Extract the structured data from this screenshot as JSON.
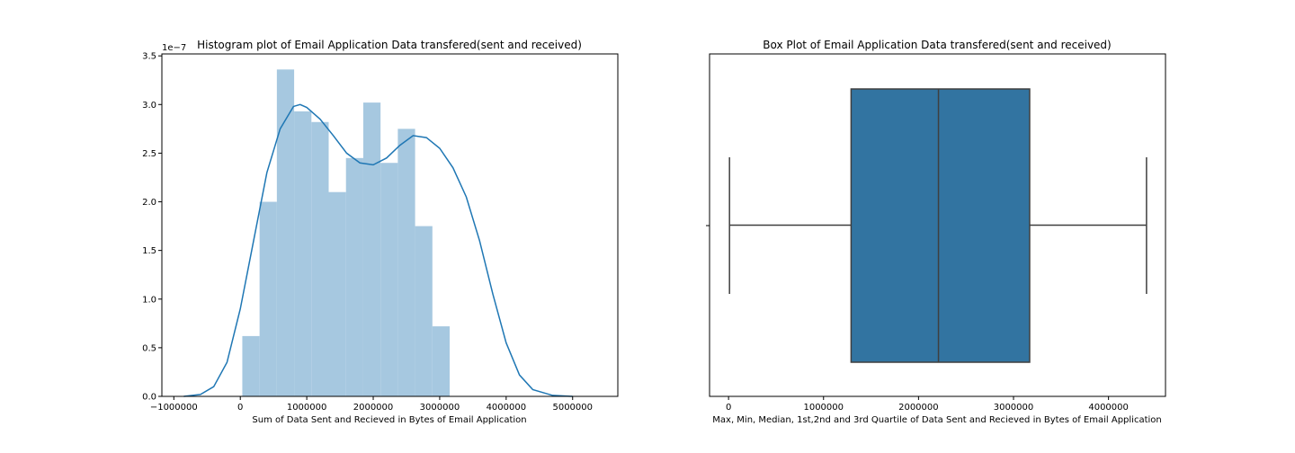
{
  "chart_data": [
    {
      "type": "bar",
      "title": "Histogram plot of Email Application Data transfered(sent and received)",
      "xlabel": "Sum of Data Sent and Recieved in Bytes of Email Application",
      "ylabel": "",
      "y_offset_text": "1e−7",
      "xlim": [
        -1180000,
        5680000
      ],
      "ylim": [
        0,
        3.52e-07
      ],
      "x_ticks": [
        -1000000,
        0,
        1000000,
        2000000,
        3000000,
        4000000,
        5000000
      ],
      "x_tick_labels": [
        "−1000000",
        "0",
        "1000000",
        "2000000",
        "3000000",
        "4000000",
        "5000000"
      ],
      "y_ticks": [
        0,
        5e-08,
        1e-07,
        1.5e-07,
        2e-07,
        2.5e-07,
        3e-07,
        3.5e-07
      ],
      "y_tick_labels": [
        "0.0",
        "0.5",
        "1.0",
        "1.5",
        "2.0",
        "2.5",
        "3.0",
        "3.5"
      ],
      "bar_color": "#a6c8e0",
      "kde_color": "#1f77b4",
      "bins": [
        {
          "x0": 30000,
          "x1": 290000,
          "value": 6.2e-08
        },
        {
          "x0": 290000,
          "x1": 550000,
          "value": 2e-07
        },
        {
          "x0": 550000,
          "x1": 810000,
          "value": 3.36e-07
        },
        {
          "x0": 810000,
          "x1": 1070000,
          "value": 2.93e-07
        },
        {
          "x0": 1070000,
          "x1": 1330000,
          "value": 2.82e-07
        },
        {
          "x0": 1330000,
          "x1": 1590000,
          "value": 2.1e-07
        },
        {
          "x0": 1590000,
          "x1": 1850000,
          "value": 2.45e-07
        },
        {
          "x0": 1850000,
          "x1": 2110000,
          "value": 3.02e-07
        },
        {
          "x0": 2110000,
          "x1": 2370000,
          "value": 2.4e-07
        },
        {
          "x0": 2370000,
          "x1": 2630000,
          "value": 2.75e-07
        },
        {
          "x0": 2630000,
          "x1": 2890000,
          "value": 1.75e-07
        },
        {
          "x0": 2890000,
          "x1": 3150000,
          "value": 7.2e-08
        }
      ],
      "kde_points": [
        [
          -850000,
          0.0
        ],
        [
          -600000,
          2e-09
        ],
        [
          -400000,
          1e-08
        ],
        [
          -200000,
          3.5e-08
        ],
        [
          0,
          9e-08
        ],
        [
          200000,
          1.6e-07
        ],
        [
          400000,
          2.3e-07
        ],
        [
          600000,
          2.75e-07
        ],
        [
          800000,
          2.98e-07
        ],
        [
          900000,
          3e-07
        ],
        [
          1000000,
          2.97e-07
        ],
        [
          1200000,
          2.85e-07
        ],
        [
          1400000,
          2.68e-07
        ],
        [
          1600000,
          2.5e-07
        ],
        [
          1800000,
          2.4e-07
        ],
        [
          2000000,
          2.38e-07
        ],
        [
          2200000,
          2.45e-07
        ],
        [
          2400000,
          2.58e-07
        ],
        [
          2600000,
          2.68e-07
        ],
        [
          2800000,
          2.66e-07
        ],
        [
          3000000,
          2.55e-07
        ],
        [
          3200000,
          2.35e-07
        ],
        [
          3400000,
          2.05e-07
        ],
        [
          3600000,
          1.6e-07
        ],
        [
          3800000,
          1.05e-07
        ],
        [
          4000000,
          5.5e-08
        ],
        [
          4200000,
          2.2e-08
        ],
        [
          4400000,
          7e-09
        ],
        [
          4700000,
          1e-09
        ],
        [
          5000000,
          0.0
        ]
      ]
    },
    {
      "type": "box",
      "title": "Box Plot of Email Application Data transfered(sent and received)",
      "xlabel": "Max, Min, Median, 1st,2nd and 3rd Quartile of Data Sent and Recieved in Bytes of Email Application",
      "ylabel": "",
      "xlim": [
        -200000,
        4600000
      ],
      "x_ticks": [
        0,
        1000000,
        2000000,
        3000000,
        4000000
      ],
      "x_tick_labels": [
        "0",
        "1000000",
        "2000000",
        "3000000",
        "4000000"
      ],
      "box_color": "#3274a1",
      "line_color": "#3f3f3f",
      "min": 10000,
      "q1": 1290000,
      "median": 2210000,
      "q3": 3170000,
      "max": 4400000
    }
  ]
}
